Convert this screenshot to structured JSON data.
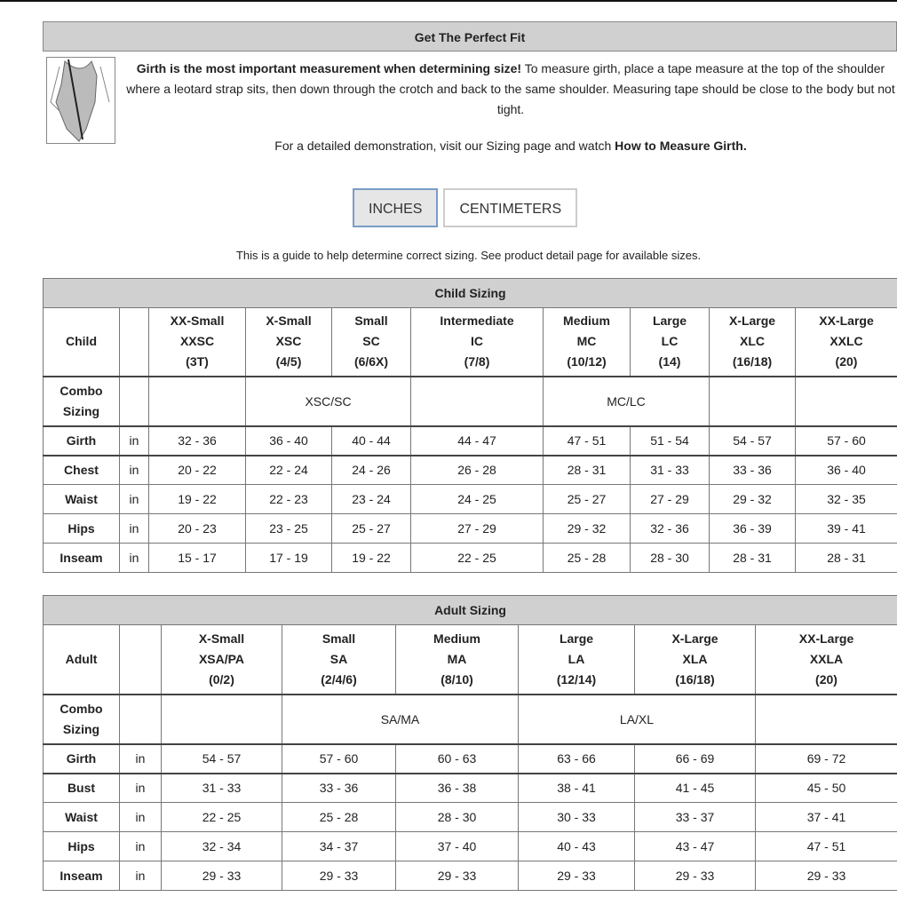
{
  "fit": {
    "title": "Get The Perfect Fit",
    "intro_bold": "Girth is the most important measurement when determining size!",
    "intro_rest": " To measure girth, place a tape measure at the top of the shoulder where a leotard strap sits, then down through the crotch and back to the same shoulder. Measuring tape should be close to the body but not tight.",
    "demo_text": "For a detailed demonstration, visit our Sizing page and watch ",
    "demo_link": "How to Measure Girth."
  },
  "units": {
    "inches": "INCHES",
    "centimeters": "CENTIMETERS",
    "selected": "INCHES"
  },
  "guide": "This is a guide to help determine correct sizing. See product detail page for available sizes.",
  "child": {
    "title": "Child Sizing",
    "label": "Child",
    "combo_label": [
      "Combo",
      "Sizing"
    ],
    "sizes": [
      [
        "XX-Small",
        "XXSC",
        "(3T)"
      ],
      [
        "X-Small",
        "XSC",
        "(4/5)"
      ],
      [
        "Small",
        "SC",
        "(6/6X)"
      ],
      [
        "Intermediate",
        "IC",
        "(7/8)"
      ],
      [
        "Medium",
        "MC",
        "(10/12)"
      ],
      [
        "Large",
        "LC",
        "(14)"
      ],
      [
        "X-Large",
        "XLC",
        "(16/18)"
      ],
      [
        "XX-Large",
        "XXLC",
        "(20)"
      ]
    ],
    "combos": [
      {
        "text": "",
        "span": 1
      },
      {
        "text": "XSC/SC",
        "span": 2
      },
      {
        "text": "",
        "span": 1
      },
      {
        "text": "MC/LC",
        "span": 2
      },
      {
        "text": "",
        "span": 1
      },
      {
        "text": "",
        "span": 1
      }
    ],
    "rows": [
      {
        "name": "Girth",
        "unit": "in",
        "values": [
          "32 - 36",
          "36 - 40",
          "40 - 44",
          "44 - 47",
          "47 - 51",
          "51 - 54",
          "54 - 57",
          "57 - 60"
        ]
      },
      {
        "name": "Chest",
        "unit": "in",
        "values": [
          "20 - 22",
          "22 - 24",
          "24 - 26",
          "26 - 28",
          "28 - 31",
          "31 - 33",
          "33 - 36",
          "36 - 40"
        ]
      },
      {
        "name": "Waist",
        "unit": "in",
        "values": [
          "19 - 22",
          "22 - 23",
          "23 - 24",
          "24 - 25",
          "25 - 27",
          "27 - 29",
          "29 - 32",
          "32 - 35"
        ]
      },
      {
        "name": "Hips",
        "unit": "in",
        "values": [
          "20 - 23",
          "23 - 25",
          "25 - 27",
          "27 - 29",
          "29 - 32",
          "32 - 36",
          "36 - 39",
          "39 - 41"
        ]
      },
      {
        "name": "Inseam",
        "unit": "in",
        "values": [
          "15 - 17",
          "17 - 19",
          "19 - 22",
          "22 - 25",
          "25 - 28",
          "28 - 30",
          "28 - 31",
          "28 - 31"
        ]
      }
    ]
  },
  "adult": {
    "title": "Adult Sizing",
    "label": "Adult",
    "combo_label": [
      "Combo",
      "Sizing"
    ],
    "sizes": [
      [
        "X-Small",
        "XSA/PA",
        "(0/2)"
      ],
      [
        "Small",
        "SA",
        "(2/4/6)"
      ],
      [
        "Medium",
        "MA",
        "(8/10)"
      ],
      [
        "Large",
        "LA",
        "(12/14)"
      ],
      [
        "X-Large",
        "XLA",
        "(16/18)"
      ],
      [
        "XX-Large",
        "XXLA",
        "(20)"
      ]
    ],
    "combos": [
      {
        "text": "",
        "span": 1
      },
      {
        "text": "SA/MA",
        "span": 2
      },
      {
        "text": "LA/XL",
        "span": 2
      },
      {
        "text": "",
        "span": 1
      }
    ],
    "rows": [
      {
        "name": "Girth",
        "unit": "in",
        "values": [
          "54 - 57",
          "57 - 60",
          "60 - 63",
          "63 - 66",
          "66 - 69",
          "69 - 72"
        ]
      },
      {
        "name": "Bust",
        "unit": "in",
        "values": [
          "31 - 33",
          "33 - 36",
          "36 - 38",
          "38 - 41",
          "41 - 45",
          "45 - 50"
        ]
      },
      {
        "name": "Waist",
        "unit": "in",
        "values": [
          "22 - 25",
          "25 - 28",
          "28 - 30",
          "30 - 33",
          "33 - 37",
          "37 - 41"
        ]
      },
      {
        "name": "Hips",
        "unit": "in",
        "values": [
          "32 - 34",
          "34 - 37",
          "37 - 40",
          "40 - 43",
          "43 - 47",
          "47 - 51"
        ]
      },
      {
        "name": "Inseam",
        "unit": "in",
        "values": [
          "29 - 33",
          "29 - 33",
          "29 - 33",
          "29 - 33",
          "29 - 33",
          "29 - 33"
        ]
      }
    ]
  }
}
